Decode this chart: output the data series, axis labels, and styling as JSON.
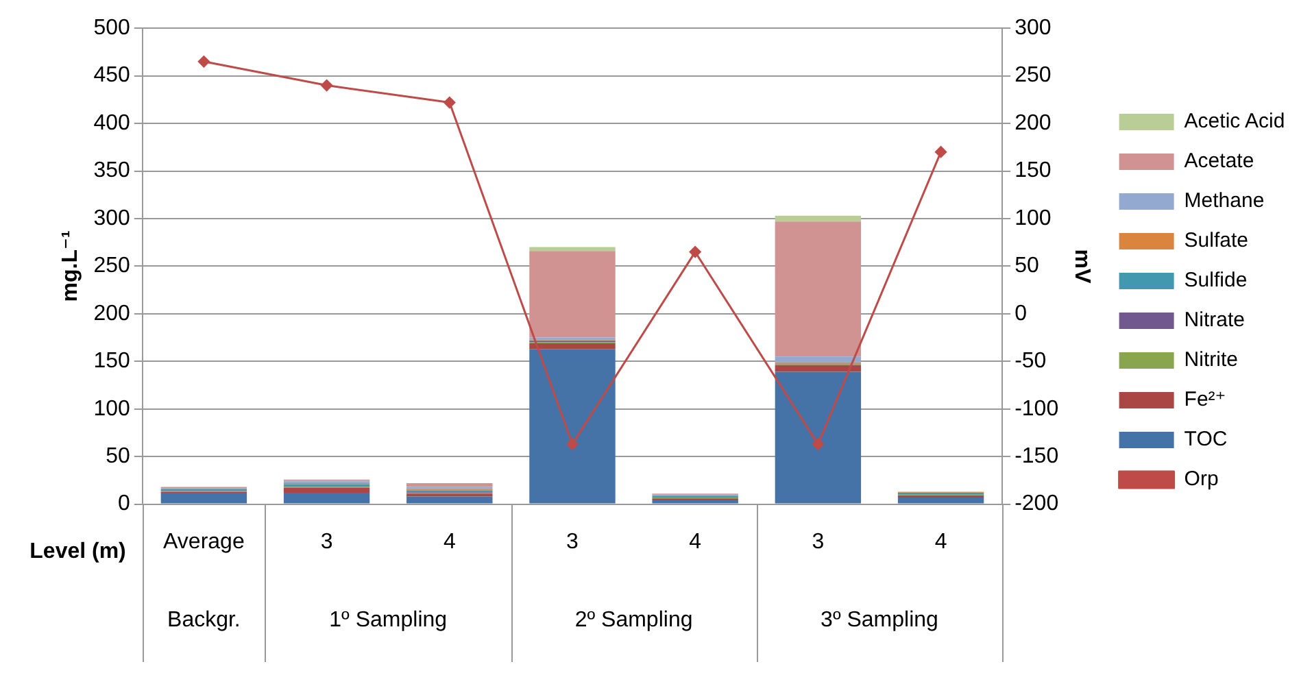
{
  "chart_data": {
    "type": "bar",
    "stacked": true,
    "categories": [
      "Average",
      "3",
      "4",
      "3",
      "4",
      "3",
      "4"
    ],
    "xlabel": "Level (m)",
    "ylabel": "mg.L⁻¹",
    "y2label": "mV",
    "annotations": [
      "Backgr.",
      "1º Sampling",
      "2º Sampling",
      "3º Sampling"
    ],
    "series": [
      {
        "name": "TOC",
        "color": "#4572a7",
        "values": [
          12,
          12,
          8,
          163,
          4,
          139,
          7
        ]
      },
      {
        "name": "Fe²⁺",
        "color": "#aa4643",
        "values": [
          1,
          5,
          3,
          6,
          2,
          7,
          2
        ]
      },
      {
        "name": "Nitrite",
        "color": "#89a54e",
        "values": [
          0.5,
          1,
          1,
          1,
          1,
          0.5,
          0.5
        ]
      },
      {
        "name": "Nitrate",
        "color": "#71588f",
        "values": [
          0.5,
          1,
          0.5,
          1,
          0.5,
          0.5,
          0.5
        ]
      },
      {
        "name": "Sulfide",
        "color": "#4198af",
        "values": [
          2,
          2,
          2,
          1,
          1,
          0.5,
          2
        ]
      },
      {
        "name": "Sulfate",
        "color": "#db843d",
        "values": [
          0.5,
          1,
          1.5,
          1,
          0.5,
          1.5,
          0.5
        ]
      },
      {
        "name": "Methane",
        "color": "#93a9cf",
        "values": [
          0.5,
          2,
          2,
          2,
          1,
          6,
          0.5
        ]
      },
      {
        "name": "Acetate",
        "color": "#d19392",
        "values": [
          1,
          1.5,
          4,
          91,
          1,
          142,
          0
        ]
      },
      {
        "name": "Acetic Acid",
        "color": "#b9cd96",
        "values": [
          0,
          0.5,
          0,
          4,
          0,
          6,
          0
        ]
      },
      {
        "name": "Orp",
        "type": "line",
        "axis": "y2",
        "color": "#be4b48",
        "values": [
          265,
          240,
          222,
          -137,
          65,
          -137,
          170
        ]
      }
    ],
    "ylim": [
      0,
      500
    ],
    "yticks": [
      0,
      50,
      100,
      150,
      200,
      250,
      300,
      350,
      400,
      450,
      500
    ],
    "y2lim": [
      -200,
      300
    ],
    "y2ticks": [
      -200,
      -150,
      -100,
      -50,
      0,
      50,
      100,
      150,
      200,
      250,
      300
    ],
    "grid": "y",
    "legend": "right",
    "marker": "diamond",
    "line_style": "solid"
  }
}
